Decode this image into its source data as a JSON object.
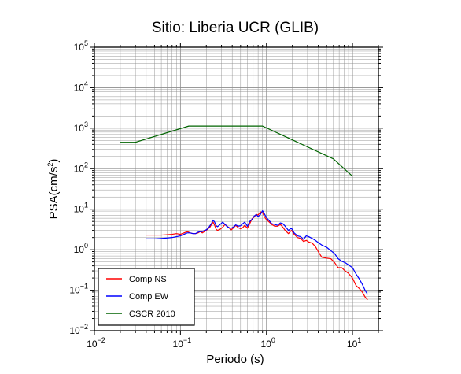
{
  "chart_data": {
    "type": "line",
    "title": "Sitio: Liberia UCR (GLIB)",
    "xlabel": "Periodo (s)",
    "ylabel_base": "PSA(cm/s",
    "ylabel_sup": "2",
    "ylabel_end": ")",
    "xscale": "log",
    "yscale": "log",
    "xlim": [
      0.01,
      20
    ],
    "ylim": [
      0.01,
      100000
    ],
    "grid": true,
    "legend_position": "bottom-left",
    "x_tick_labels": [
      {
        "base": "10",
        "exp": "−2",
        "value": 0.01
      },
      {
        "base": "10",
        "exp": "−1",
        "value": 0.1
      },
      {
        "base": "10",
        "exp": "0",
        "value": 1
      },
      {
        "base": "10",
        "exp": "1",
        "value": 10
      }
    ],
    "y_tick_labels": [
      {
        "base": "10",
        "exp": "−2",
        "value": 0.01
      },
      {
        "base": "10",
        "exp": "−1",
        "value": 0.1
      },
      {
        "base": "10",
        "exp": "0",
        "value": 1
      },
      {
        "base": "10",
        "exp": "1",
        "value": 10
      },
      {
        "base": "10",
        "exp": "2",
        "value": 100
      },
      {
        "base": "10",
        "exp": "3",
        "value": 1000
      },
      {
        "base": "10",
        "exp": "4",
        "value": 10000
      },
      {
        "base": "10",
        "exp": "5",
        "value": 100000
      }
    ],
    "series": [
      {
        "name": "Comp NS",
        "color": "#ff0000",
        "points": [
          [
            0.04,
            2.3
          ],
          [
            0.05,
            2.3
          ],
          [
            0.06,
            2.3
          ],
          [
            0.07,
            2.35
          ],
          [
            0.08,
            2.4
          ],
          [
            0.09,
            2.5
          ],
          [
            0.1,
            2.4
          ],
          [
            0.11,
            2.6
          ],
          [
            0.12,
            2.8
          ],
          [
            0.13,
            2.6
          ],
          [
            0.14,
            2.5
          ],
          [
            0.15,
            2.5
          ],
          [
            0.16,
            2.6
          ],
          [
            0.17,
            2.8
          ],
          [
            0.18,
            2.6
          ],
          [
            0.19,
            2.8
          ],
          [
            0.2,
            3.0
          ],
          [
            0.21,
            3.3
          ],
          [
            0.22,
            3.6
          ],
          [
            0.23,
            4.2
          ],
          [
            0.24,
            4.8
          ],
          [
            0.25,
            4.0
          ],
          [
            0.26,
            3.2
          ],
          [
            0.27,
            3.0
          ],
          [
            0.29,
            3.2
          ],
          [
            0.31,
            3.6
          ],
          [
            0.33,
            4.2
          ],
          [
            0.35,
            3.8
          ],
          [
            0.37,
            3.4
          ],
          [
            0.39,
            3.1
          ],
          [
            0.41,
            3.4
          ],
          [
            0.44,
            4.0
          ],
          [
            0.47,
            3.5
          ],
          [
            0.5,
            3.3
          ],
          [
            0.53,
            3.5
          ],
          [
            0.56,
            4.0
          ],
          [
            0.6,
            3.4
          ],
          [
            0.64,
            4.4
          ],
          [
            0.68,
            5.8
          ],
          [
            0.72,
            6.4
          ],
          [
            0.76,
            7.5
          ],
          [
            0.8,
            7.2
          ],
          [
            0.85,
            8.6
          ],
          [
            0.9,
            8.2
          ],
          [
            0.95,
            6.5
          ],
          [
            1.0,
            5.5
          ],
          [
            1.08,
            4.8
          ],
          [
            1.15,
            4.2
          ],
          [
            1.25,
            3.8
          ],
          [
            1.35,
            3.8
          ],
          [
            1.45,
            4.2
          ],
          [
            1.55,
            3.6
          ],
          [
            1.65,
            3.0
          ],
          [
            1.8,
            2.5
          ],
          [
            1.95,
            3.0
          ],
          [
            2.1,
            2.4
          ],
          [
            2.3,
            2.0
          ],
          [
            2.5,
            1.9
          ],
          [
            2.7,
            1.6
          ],
          [
            2.9,
            1.7
          ],
          [
            3.1,
            1.55
          ],
          [
            3.4,
            1.45
          ],
          [
            3.7,
            1.2
          ],
          [
            4.0,
            0.9
          ],
          [
            4.4,
            0.65
          ],
          [
            5.0,
            0.62
          ],
          [
            5.6,
            0.6
          ],
          [
            6.2,
            0.48
          ],
          [
            6.8,
            0.36
          ],
          [
            7.5,
            0.36
          ],
          [
            8.2,
            0.3
          ],
          [
            9.0,
            0.26
          ],
          [
            10.0,
            0.2
          ],
          [
            11.0,
            0.13
          ],
          [
            12.0,
            0.11
          ],
          [
            13.0,
            0.09
          ],
          [
            14.0,
            0.068
          ],
          [
            15.0,
            0.058
          ]
        ]
      },
      {
        "name": "Comp EW",
        "color": "#0000ff",
        "points": [
          [
            0.04,
            1.85
          ],
          [
            0.05,
            1.85
          ],
          [
            0.06,
            1.9
          ],
          [
            0.07,
            1.95
          ],
          [
            0.08,
            2.0
          ],
          [
            0.09,
            2.1
          ],
          [
            0.1,
            2.2
          ],
          [
            0.11,
            2.4
          ],
          [
            0.12,
            2.6
          ],
          [
            0.13,
            2.6
          ],
          [
            0.14,
            2.5
          ],
          [
            0.15,
            2.5
          ],
          [
            0.16,
            2.7
          ],
          [
            0.17,
            2.8
          ],
          [
            0.18,
            2.8
          ],
          [
            0.19,
            3.0
          ],
          [
            0.2,
            3.1
          ],
          [
            0.21,
            3.4
          ],
          [
            0.22,
            3.9
          ],
          [
            0.23,
            4.5
          ],
          [
            0.24,
            5.4
          ],
          [
            0.25,
            4.8
          ],
          [
            0.26,
            3.9
          ],
          [
            0.27,
            3.7
          ],
          [
            0.29,
            4.2
          ],
          [
            0.31,
            4.8
          ],
          [
            0.33,
            4.2
          ],
          [
            0.35,
            3.7
          ],
          [
            0.37,
            3.5
          ],
          [
            0.39,
            3.4
          ],
          [
            0.41,
            3.6
          ],
          [
            0.44,
            4.1
          ],
          [
            0.47,
            3.8
          ],
          [
            0.5,
            3.9
          ],
          [
            0.53,
            4.4
          ],
          [
            0.56,
            4.8
          ],
          [
            0.6,
            3.8
          ],
          [
            0.64,
            5.0
          ],
          [
            0.68,
            5.6
          ],
          [
            0.72,
            6.8
          ],
          [
            0.76,
            7.4
          ],
          [
            0.8,
            6.6
          ],
          [
            0.85,
            7.4
          ],
          [
            0.9,
            9.2
          ],
          [
            0.95,
            7.6
          ],
          [
            1.0,
            6.2
          ],
          [
            1.08,
            5.2
          ],
          [
            1.15,
            4.4
          ],
          [
            1.25,
            4.2
          ],
          [
            1.35,
            4.0
          ],
          [
            1.45,
            4.6
          ],
          [
            1.55,
            4.4
          ],
          [
            1.65,
            3.8
          ],
          [
            1.8,
            3.0
          ],
          [
            1.95,
            3.4
          ],
          [
            2.1,
            2.6
          ],
          [
            2.3,
            2.2
          ],
          [
            2.5,
            2.1
          ],
          [
            2.7,
            1.8
          ],
          [
            2.9,
            2.2
          ],
          [
            3.1,
            2.1
          ],
          [
            3.4,
            1.9
          ],
          [
            3.7,
            1.7
          ],
          [
            4.0,
            1.5
          ],
          [
            4.4,
            1.3
          ],
          [
            5.0,
            1.15
          ],
          [
            5.6,
            0.95
          ],
          [
            6.2,
            0.8
          ],
          [
            6.8,
            0.6
          ],
          [
            7.5,
            0.52
          ],
          [
            8.2,
            0.48
          ],
          [
            9.0,
            0.42
          ],
          [
            10.0,
            0.36
          ],
          [
            11.0,
            0.25
          ],
          [
            12.0,
            0.19
          ],
          [
            13.0,
            0.14
          ],
          [
            14.0,
            0.1
          ],
          [
            15.0,
            0.078
          ]
        ]
      },
      {
        "name": "CSCR 2010",
        "color": "#006400",
        "points": [
          [
            0.02,
            450
          ],
          [
            0.03,
            450
          ],
          [
            0.125,
            1130
          ],
          [
            0.9,
            1130
          ],
          [
            6.0,
            175
          ],
          [
            10.0,
            65
          ]
        ]
      }
    ]
  }
}
